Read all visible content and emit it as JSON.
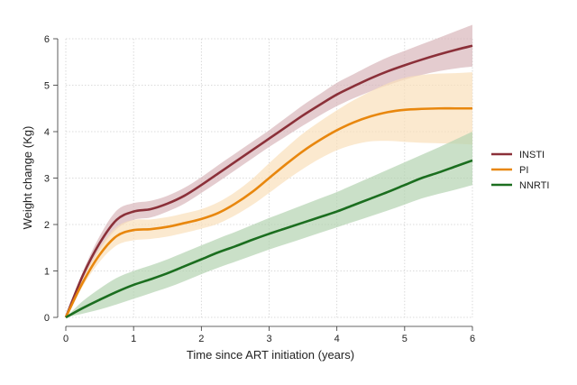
{
  "chart_data": {
    "type": "line",
    "title": "",
    "xlabel": "Time since ART initiation (years)",
    "ylabel": "Weight change (Kg)",
    "xlim": [
      0,
      6
    ],
    "ylim": [
      0,
      6
    ],
    "xticks": [
      "0",
      "1",
      "2",
      "3",
      "4",
      "5",
      "6"
    ],
    "yticks": [
      "0",
      "1",
      "2",
      "3",
      "4",
      "5",
      "6"
    ],
    "grid": true,
    "legend_position": "right",
    "x": [
      0,
      0.25,
      0.5,
      0.75,
      1,
      1.25,
      1.5,
      1.75,
      2,
      2.25,
      2.5,
      2.75,
      3,
      3.25,
      3.5,
      3.75,
      4,
      4.25,
      4.5,
      4.75,
      5,
      5.25,
      5.5,
      5.75,
      6
    ],
    "series": [
      {
        "name": "INSTI",
        "color": "#8b3039",
        "band_color": "#d8b7bb",
        "values": [
          0,
          0.9,
          1.6,
          2.1,
          2.28,
          2.33,
          2.45,
          2.62,
          2.85,
          3.1,
          3.35,
          3.6,
          3.85,
          4.1,
          4.35,
          4.58,
          4.8,
          4.98,
          5.15,
          5.3,
          5.43,
          5.55,
          5.66,
          5.76,
          5.85
        ],
        "lower": [
          0,
          0.82,
          1.45,
          1.9,
          2.1,
          2.15,
          2.28,
          2.45,
          2.68,
          2.92,
          3.17,
          3.42,
          3.67,
          3.9,
          4.13,
          4.35,
          4.55,
          4.72,
          4.87,
          5.0,
          5.12,
          5.22,
          5.3,
          5.36,
          5.4
        ],
        "upper": [
          0,
          0.98,
          1.75,
          2.3,
          2.46,
          2.51,
          2.62,
          2.79,
          3.02,
          3.28,
          3.53,
          3.78,
          4.03,
          4.3,
          4.57,
          4.81,
          5.05,
          5.24,
          5.43,
          5.6,
          5.74,
          5.88,
          6.02,
          6.16,
          6.3
        ]
      },
      {
        "name": "PI",
        "color": "#e8870e",
        "band_color": "#f9dfbb",
        "values": [
          0,
          0.75,
          1.35,
          1.75,
          1.88,
          1.9,
          1.95,
          2.03,
          2.12,
          2.25,
          2.45,
          2.7,
          3.0,
          3.3,
          3.58,
          3.82,
          4.03,
          4.2,
          4.33,
          4.42,
          4.47,
          4.49,
          4.5,
          4.5,
          4.5
        ],
        "lower": [
          0,
          0.67,
          1.2,
          1.55,
          1.66,
          1.69,
          1.74,
          1.82,
          1.91,
          2.02,
          2.2,
          2.42,
          2.68,
          2.95,
          3.2,
          3.42,
          3.6,
          3.72,
          3.79,
          3.8,
          3.78,
          3.76,
          3.75,
          3.74,
          3.72
        ],
        "upper": [
          0,
          0.83,
          1.5,
          1.95,
          2.1,
          2.11,
          2.16,
          2.24,
          2.33,
          2.48,
          2.7,
          2.98,
          3.32,
          3.65,
          3.96,
          4.22,
          4.46,
          4.68,
          4.87,
          5.04,
          5.16,
          5.22,
          5.25,
          5.26,
          5.28
        ]
      },
      {
        "name": "NNRTI",
        "color": "#1b6e1f",
        "band_color": "#b3d3b0",
        "values": [
          0,
          0.2,
          0.38,
          0.55,
          0.7,
          0.82,
          0.95,
          1.1,
          1.25,
          1.4,
          1.53,
          1.67,
          1.8,
          1.92,
          2.04,
          2.16,
          2.28,
          2.42,
          2.56,
          2.7,
          2.85,
          3.0,
          3.12,
          3.25,
          3.38
        ],
        "lower": [
          0,
          0.08,
          0.17,
          0.28,
          0.4,
          0.52,
          0.64,
          0.78,
          0.93,
          1.07,
          1.2,
          1.33,
          1.46,
          1.58,
          1.7,
          1.82,
          1.94,
          2.06,
          2.18,
          2.3,
          2.43,
          2.56,
          2.66,
          2.75,
          2.85
        ],
        "upper": [
          0,
          0.35,
          0.62,
          0.85,
          1.0,
          1.12,
          1.25,
          1.4,
          1.55,
          1.7,
          1.84,
          1.99,
          2.14,
          2.28,
          2.42,
          2.56,
          2.7,
          2.86,
          3.02,
          3.18,
          3.34,
          3.5,
          3.66,
          3.83,
          4.0
        ]
      }
    ]
  }
}
